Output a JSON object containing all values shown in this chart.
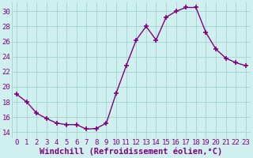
{
  "x": [
    0,
    1,
    2,
    3,
    4,
    5,
    6,
    7,
    8,
    9,
    10,
    11,
    12,
    13,
    14,
    15,
    16,
    17,
    18,
    19,
    20,
    21,
    22,
    23
  ],
  "y": [
    19.0,
    18.0,
    16.5,
    15.8,
    15.2,
    15.0,
    15.0,
    14.4,
    14.5,
    15.2,
    19.2,
    22.8,
    26.2,
    28.0,
    26.2,
    29.2,
    30.0,
    30.5,
    30.5,
    27.2,
    25.0,
    23.8,
    23.2,
    22.8
  ],
  "line_color": "#800080",
  "marker": "+",
  "markersize": 4,
  "markeredgewidth": 1.2,
  "linewidth": 1.0,
  "bg_color": "#cff0ee",
  "grid_color": "#a8d8d4",
  "xlabel": "Windchill (Refroidissement éolien,°C)",
  "xlabel_color": "#800080",
  "xlabel_fontsize": 7.5,
  "tick_color": "#800080",
  "tick_fontsize": 6.5,
  "yticks": [
    14,
    16,
    18,
    20,
    22,
    24,
    26,
    28,
    30
  ],
  "ylim": [
    13.2,
    31.2
  ],
  "xlim": [
    -0.5,
    23.5
  ]
}
